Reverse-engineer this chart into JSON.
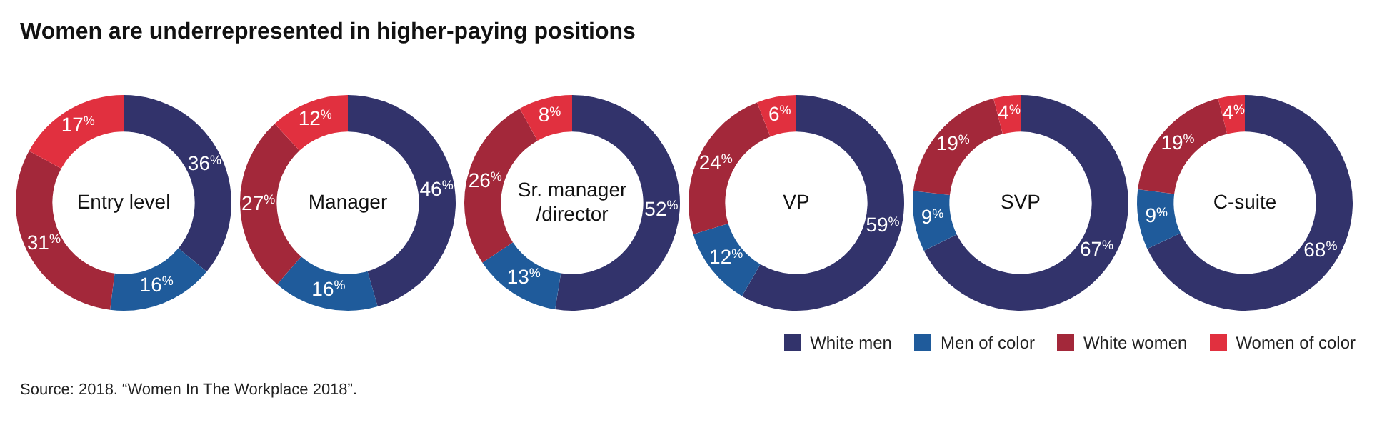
{
  "chart_data": {
    "type": "donut",
    "title": "Women are underrepresented in higher-paying positions",
    "categories": [
      "White men",
      "Men of color",
      "White women",
      "Women of color"
    ],
    "colors": [
      "#32336b",
      "#1f5b9b",
      "#a3283a",
      "#e1303f"
    ],
    "series": [
      {
        "name": "Entry level",
        "values": [
          36,
          16,
          31,
          17
        ],
        "value_labels": [
          "36%",
          "16%",
          "31%",
          "17%"
        ]
      },
      {
        "name": "Manager",
        "values": [
          46,
          16,
          27,
          12
        ],
        "value_labels": [
          "46%",
          "16%",
          "27%",
          "12%"
        ]
      },
      {
        "name": "Sr. manager /director",
        "values": [
          52,
          13,
          26,
          8
        ],
        "value_labels": [
          "52%",
          "13%",
          "26%",
          "8%"
        ]
      },
      {
        "name": "VP",
        "values": [
          59,
          12,
          24,
          6
        ],
        "value_labels": [
          "59%",
          "12%",
          "24%",
          "6%"
        ]
      },
      {
        "name": "SVP",
        "values": [
          67,
          9,
          19,
          4
        ],
        "value_labels": [
          "67%",
          "9%",
          "19%",
          "4%"
        ]
      },
      {
        "name": "C-suite",
        "values": [
          68,
          9,
          19,
          4
        ],
        "value_labels": [
          "68%",
          "9%",
          "19%",
          "4%"
        ]
      }
    ],
    "legend": "bottom right",
    "annotations": [
      "Source: 2018. “Women In The Workplace 2018”."
    ]
  }
}
